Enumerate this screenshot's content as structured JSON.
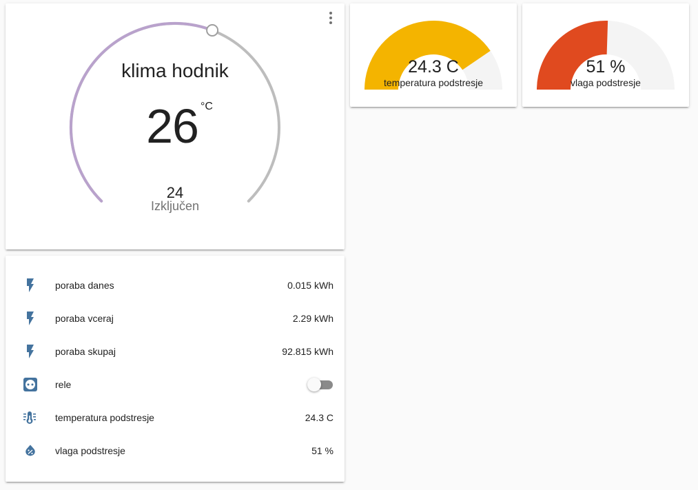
{
  "thermostat": {
    "name": "klima hodnik",
    "current_temperature": "26",
    "unit": "°C",
    "target_temperature": "24",
    "mode": "Izključen",
    "colors": {
      "active_arc": "#b9a2cc",
      "inactive_arc": "#bdbdbd"
    }
  },
  "gauges": [
    {
      "value_text": "24.3 C",
      "label": "temperatura podstresje",
      "fraction": 0.81,
      "color": "#f4b400"
    },
    {
      "value_text": "51 %",
      "label": "vlaga podstresje",
      "fraction": 0.51,
      "color": "#e04a1f"
    }
  ],
  "entities": [
    {
      "name": "poraba danes",
      "state": "0.015 kWh",
      "icon": "flash-icon"
    },
    {
      "name": "poraba vceraj",
      "state": "2.29 kWh",
      "icon": "flash-icon"
    },
    {
      "name": "poraba skupaj",
      "state": "92.815 kWh",
      "icon": "flash-icon"
    },
    {
      "name": "rele",
      "state": "",
      "icon": "power-socket-icon",
      "toggle": "off"
    },
    {
      "name": "temperatura podstresje",
      "state": "24.3 C",
      "icon": "thermometer-lines-icon"
    },
    {
      "name": "vlaga podstresje",
      "state": "51 %",
      "icon": "water-percent-icon"
    }
  ],
  "icon_color": "#44739e"
}
